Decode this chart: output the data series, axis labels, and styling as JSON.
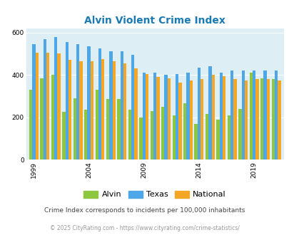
{
  "title": "Alvin Violent Crime Index",
  "years": [
    1999,
    2000,
    2001,
    2002,
    2003,
    2004,
    2005,
    2006,
    2007,
    2008,
    2009,
    2010,
    2011,
    2012,
    2013,
    2014,
    2015,
    2016,
    2017,
    2018,
    2019,
    2020,
    2021
  ],
  "alvin": [
    330,
    385,
    400,
    225,
    290,
    235,
    330,
    285,
    285,
    235,
    200,
    230,
    250,
    210,
    265,
    170,
    215,
    190,
    210,
    240,
    410,
    385,
    380
  ],
  "texas": [
    545,
    570,
    580,
    555,
    545,
    535,
    525,
    510,
    510,
    495,
    410,
    410,
    400,
    405,
    410,
    435,
    440,
    410,
    420,
    420,
    420,
    420,
    420
  ],
  "national": [
    505,
    505,
    500,
    470,
    465,
    465,
    475,
    465,
    455,
    430,
    405,
    390,
    385,
    365,
    375,
    380,
    400,
    395,
    380,
    375,
    380,
    380,
    375
  ],
  "alvin_color": "#8dc63f",
  "texas_color": "#4da6e8",
  "national_color": "#f5a623",
  "fig_bg_color": "#ffffff",
  "plot_bg": "#ddeef5",
  "ylim": [
    0,
    620
  ],
  "yticks": [
    0,
    200,
    400,
    600
  ],
  "xtick_years": [
    1999,
    2004,
    2009,
    2014,
    2019
  ],
  "subtitle": "Crime Index corresponds to incidents per 100,000 inhabitants",
  "footer": "© 2025 CityRating.com - https://www.cityrating.com/crime-statistics/",
  "title_color": "#1a7ab5",
  "subtitle_color": "#444444",
  "footer_color": "#999999",
  "legend_labels": [
    "Alvin",
    "Texas",
    "National"
  ]
}
